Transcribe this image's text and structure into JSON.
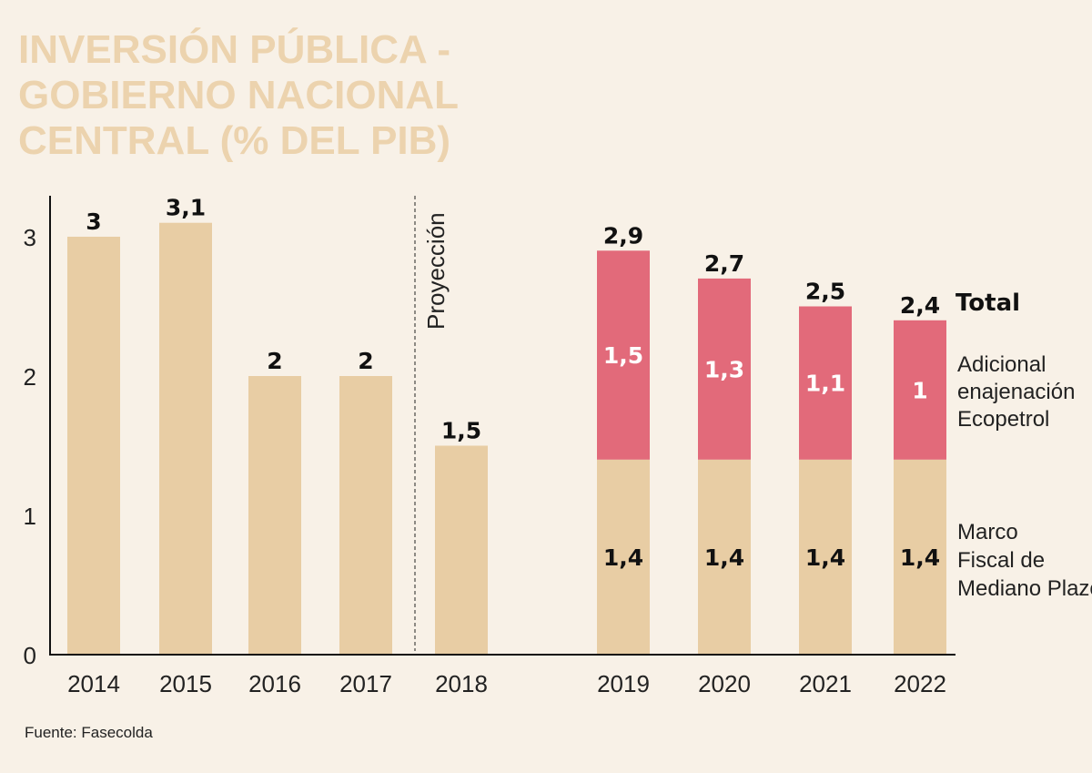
{
  "chart_data": {
    "type": "bar",
    "title": "INVERSIÓN PÚBLICA - GOBIERNO NACIONAL CENTRAL (% DEL PIB)",
    "categories": [
      "2014",
      "2015",
      "2016",
      "2017",
      "2018",
      "2019",
      "2020",
      "2021",
      "2022"
    ],
    "ylim": [
      0,
      3.25
    ],
    "yticks": [
      "0",
      "1",
      "2",
      "3"
    ],
    "grid": false,
    "single_values": [
      3,
      3.1,
      2,
      2,
      1.5,
      null,
      null,
      null,
      null
    ],
    "single_labels": [
      "3",
      "3,1",
      "2",
      "2",
      "1,5",
      "",
      "",
      "",
      ""
    ],
    "series": [
      {
        "name": "Marco Fiscal de Mediano Plazo",
        "values": [
          null,
          null,
          null,
          null,
          null,
          1.4,
          1.4,
          1.4,
          1.4
        ],
        "labels": [
          "",
          "",
          "",
          "",
          "",
          "1,4",
          "1,4",
          "1,4",
          "1,4"
        ],
        "color": "#e8cda4"
      },
      {
        "name": "Adicional enajenación Ecopetrol",
        "values": [
          null,
          null,
          null,
          null,
          null,
          1.5,
          1.3,
          1.1,
          1
        ],
        "labels": [
          "",
          "",
          "",
          "",
          "",
          "1,5",
          "1,3",
          "1,1",
          "1"
        ],
        "color": "#e26a7a"
      }
    ],
    "totals": [
      null,
      null,
      null,
      null,
      null,
      2.9,
      2.7,
      2.5,
      2.4
    ],
    "total_labels": [
      "",
      "",
      "",
      "",
      "",
      "2,9",
      "2,7",
      "2,5",
      "2,4"
    ],
    "total_legend": "Total",
    "legend_lines": {
      "ecopetrol": [
        "Adicional",
        "enajenación",
        "Ecopetrol"
      ],
      "mfmp": [
        "Marco",
        "Fiscal de",
        "Mediano Plazo"
      ]
    },
    "annotation": "Proyección",
    "legend_placement": "right",
    "bar_color": "#e8cda4",
    "source": "Fuente: Fasecolda"
  }
}
